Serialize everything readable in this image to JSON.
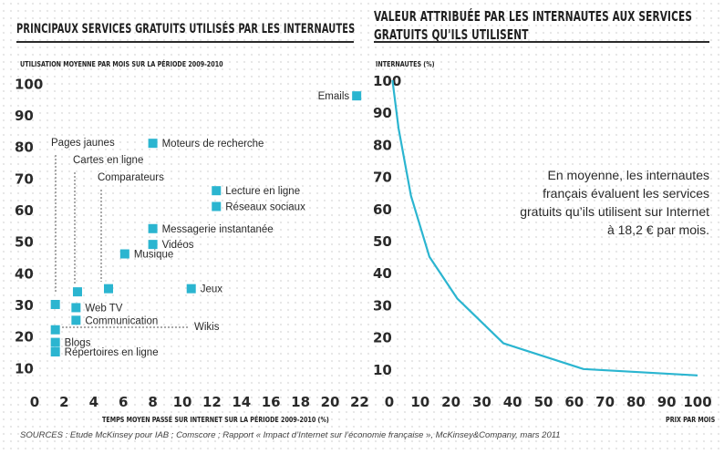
{
  "left_chart": {
    "title": "PRINCIPAUX SERVICES GRATUITS UTILISÉS PAR LES INTERNAUTES",
    "ylabel": "UTILISATION MOYENNE PAR MOIS SUR LA PÉRIODE 2009-2010",
    "xlabel": "TEMPS MOYEN PASSÉ SUR INTERNET SUR LA PÉRIODE 2009-2010 (%)"
  },
  "right_chart": {
    "title_line1": "VALEUR ATTRIBUÉE PAR LES INTERNAUTES  AUX SERVICES",
    "title_line2": "GRATUITS QU'ILS UTILISENT",
    "ylabel": "INTERNAUTES (%)",
    "xlabel": "PRIX PAR MOIS",
    "note": "En moyenne, les internautes français évaluent les services gratuits qu’ils utilisent sur Internet à 18,2 € par mois."
  },
  "sources": "SOURCES : Etude McKinsey pour IAB ; Comscore ; Rapport « Impact d’Internet sur l’économie française », McKinsey&Company, mars 2011",
  "colors": {
    "accent": "#2bb5d0",
    "text": "#2a2a2a"
  },
  "chart_data": [
    {
      "type": "scatter",
      "title": "PRINCIPAUX SERVICES GRATUITS UTILISÉS PAR LES INTERNAUTES",
      "xlabel": "TEMPS MOYEN PASSÉ SUR INTERNET SUR LA PÉRIODE 2009-2010 (%)",
      "ylabel": "UTILISATION MOYENNE PAR MOIS SUR LA PÉRIODE 2009-2010",
      "xlim": [
        0,
        22
      ],
      "ylim": [
        0,
        100
      ],
      "xticks": [
        0,
        2,
        4,
        6,
        8,
        10,
        12,
        14,
        16,
        18,
        20,
        22
      ],
      "yticks": [
        10,
        20,
        30,
        40,
        50,
        60,
        70,
        80,
        90,
        100
      ],
      "points": [
        {
          "name": "Emails",
          "x": 21.8,
          "y": 96
        },
        {
          "name": "Moteurs de recherche",
          "x": 8.0,
          "y": 81
        },
        {
          "name": "Pages jaunes",
          "x": 1.4,
          "y": 30
        },
        {
          "name": "Cartes en ligne",
          "x": 2.9,
          "y": 34
        },
        {
          "name": "Comparateurs",
          "x": 5.0,
          "y": 35
        },
        {
          "name": "Lecture en ligne",
          "x": 12.3,
          "y": 66
        },
        {
          "name": "Réseaux sociaux",
          "x": 12.3,
          "y": 61
        },
        {
          "name": "Messagerie instantanée",
          "x": 8.0,
          "y": 54
        },
        {
          "name": "Vidéos",
          "x": 8.0,
          "y": 49
        },
        {
          "name": "Musique",
          "x": 6.1,
          "y": 46
        },
        {
          "name": "Jeux",
          "x": 10.6,
          "y": 35
        },
        {
          "name": "Web TV",
          "x": 2.8,
          "y": 29
        },
        {
          "name": "Communication",
          "x": 2.8,
          "y": 25
        },
        {
          "name": "Wikis",
          "x": 1.4,
          "y": 22
        },
        {
          "name": "Blogs",
          "x": 1.4,
          "y": 18
        },
        {
          "name": "Répertoires en ligne",
          "x": 1.4,
          "y": 15
        }
      ]
    },
    {
      "type": "line",
      "title": "VALEUR ATTRIBUÉE PAR LES INTERNAUTES  AUX SERVICES GRATUITS QU'ILS UTILISENT",
      "xlabel": "PRIX PAR MOIS",
      "ylabel": "INTERNAUTES (%)",
      "xlim": [
        0,
        100
      ],
      "ylim": [
        0,
        100
      ],
      "xticks": [
        0,
        10,
        20,
        30,
        40,
        50,
        60,
        70,
        80,
        90,
        100
      ],
      "yticks": [
        10,
        20,
        30,
        40,
        50,
        60,
        70,
        80,
        90,
        100
      ],
      "x": [
        1,
        3,
        7,
        13,
        22,
        37,
        63,
        100
      ],
      "y": [
        100,
        85,
        64,
        45,
        32,
        18,
        10,
        8
      ]
    }
  ]
}
